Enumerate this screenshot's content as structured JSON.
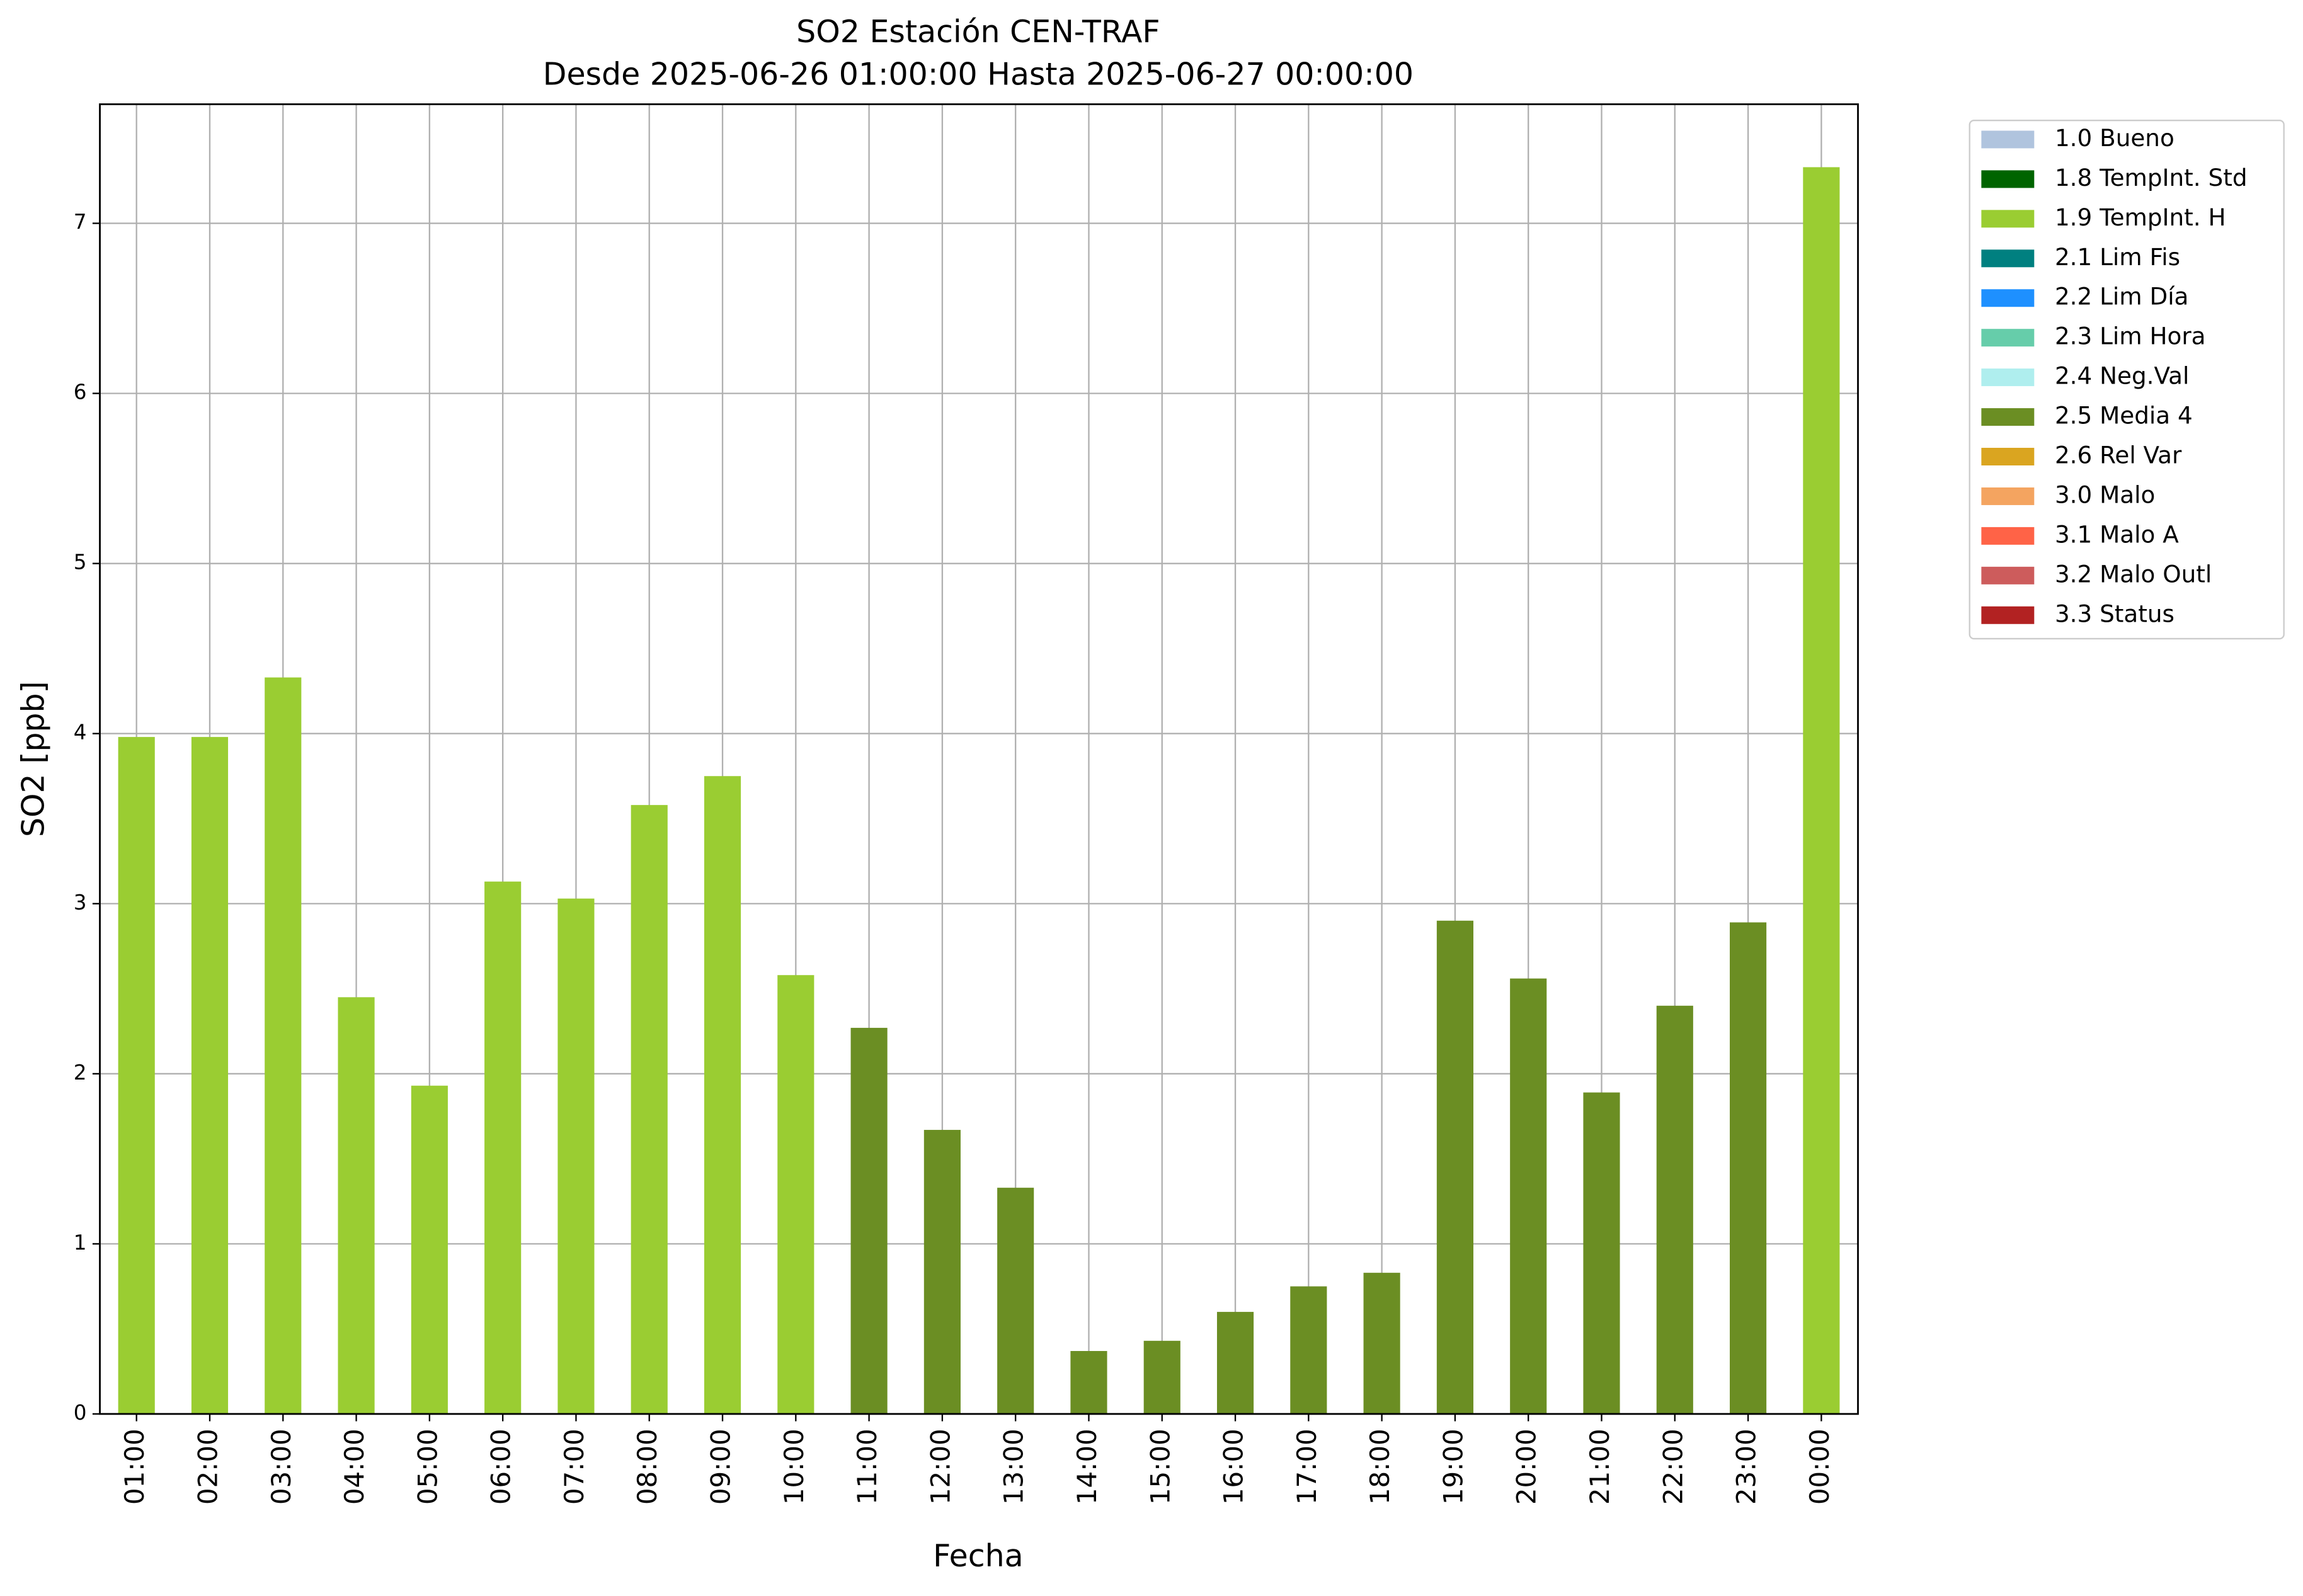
{
  "chart_data": {
    "type": "bar",
    "stacked": true,
    "title": "SO2 Estación CEN-TRAF",
    "subtitle": "Desde 2025-06-26 01:00:00 Hasta 2025-06-27 00:00:00",
    "xlabel": "Fecha",
    "ylabel": "SO2 [ppb]",
    "categories": [
      "01:00",
      "02:00",
      "03:00",
      "04:00",
      "05:00",
      "06:00",
      "07:00",
      "08:00",
      "09:00",
      "10:00",
      "11:00",
      "12:00",
      "13:00",
      "14:00",
      "15:00",
      "16:00",
      "17:00",
      "18:00",
      "19:00",
      "20:00",
      "21:00",
      "22:00",
      "23:00",
      "00:00"
    ],
    "ylim": [
      0,
      7.7
    ],
    "yticks": [
      0,
      1,
      2,
      3,
      4,
      5,
      6,
      7
    ],
    "grid": true,
    "legend": "outside-right",
    "series": [
      {
        "name": "1.0 Bueno",
        "color": "#b0c4de",
        "values": [
          null,
          null,
          null,
          null,
          null,
          null,
          null,
          null,
          null,
          null,
          null,
          null,
          null,
          null,
          null,
          null,
          null,
          null,
          null,
          null,
          null,
          null,
          null,
          null
        ]
      },
      {
        "name": "1.8 TempInt. Std",
        "color": "#006400",
        "values": [
          null,
          null,
          null,
          null,
          null,
          null,
          null,
          null,
          null,
          null,
          null,
          null,
          null,
          null,
          null,
          null,
          null,
          null,
          null,
          null,
          null,
          null,
          null,
          null
        ]
      },
      {
        "name": "1.9 TempInt. H",
        "color": "#9acd32",
        "values": [
          3.98,
          3.98,
          4.33,
          2.45,
          1.93,
          3.13,
          3.03,
          3.58,
          3.75,
          2.58,
          null,
          null,
          null,
          null,
          null,
          null,
          null,
          null,
          null,
          null,
          null,
          null,
          null,
          7.33
        ]
      },
      {
        "name": "2.1 Lim Fis",
        "color": "#008080",
        "values": [
          null,
          null,
          null,
          null,
          null,
          null,
          null,
          null,
          null,
          null,
          null,
          null,
          null,
          null,
          null,
          null,
          null,
          null,
          null,
          null,
          null,
          null,
          null,
          null
        ]
      },
      {
        "name": "2.2 Lim Día",
        "color": "#1e90ff",
        "values": [
          null,
          null,
          null,
          null,
          null,
          null,
          null,
          null,
          null,
          null,
          null,
          null,
          null,
          null,
          null,
          null,
          null,
          null,
          null,
          null,
          null,
          null,
          null,
          null
        ]
      },
      {
        "name": "2.3 Lim Hora",
        "color": "#66cdaa",
        "values": [
          null,
          null,
          null,
          null,
          null,
          null,
          null,
          null,
          null,
          null,
          null,
          null,
          null,
          null,
          null,
          null,
          null,
          null,
          null,
          null,
          null,
          null,
          null,
          null
        ]
      },
      {
        "name": "2.4 Neg.Val",
        "color": "#afeeee",
        "values": [
          null,
          null,
          null,
          null,
          null,
          null,
          null,
          null,
          null,
          null,
          null,
          null,
          null,
          null,
          null,
          null,
          null,
          null,
          null,
          null,
          null,
          null,
          null,
          null
        ]
      },
      {
        "name": "2.5 Media 4",
        "color": "#6b8e23",
        "values": [
          null,
          null,
          null,
          null,
          null,
          null,
          null,
          null,
          null,
          null,
          2.27,
          1.67,
          1.33,
          0.37,
          0.43,
          0.6,
          0.75,
          0.83,
          2.9,
          2.56,
          1.89,
          2.4,
          2.89,
          null
        ]
      },
      {
        "name": "2.6 Rel Var",
        "color": "#daa520",
        "values": [
          null,
          null,
          null,
          null,
          null,
          null,
          null,
          null,
          null,
          null,
          null,
          null,
          null,
          null,
          null,
          null,
          null,
          null,
          null,
          null,
          null,
          null,
          null,
          null
        ]
      },
      {
        "name": "3.0 Malo",
        "color": "#f4a460",
        "values": [
          null,
          null,
          null,
          null,
          null,
          null,
          null,
          null,
          null,
          null,
          null,
          null,
          null,
          null,
          null,
          null,
          null,
          null,
          null,
          null,
          null,
          null,
          null,
          null
        ]
      },
      {
        "name": "3.1 Malo A",
        "color": "#ff6347",
        "values": [
          null,
          null,
          null,
          null,
          null,
          null,
          null,
          null,
          null,
          null,
          null,
          null,
          null,
          null,
          null,
          null,
          null,
          null,
          null,
          null,
          null,
          null,
          null,
          null
        ]
      },
      {
        "name": "3.2 Malo Outl",
        "color": "#cd5c5c",
        "values": [
          null,
          null,
          null,
          null,
          null,
          null,
          null,
          null,
          null,
          null,
          null,
          null,
          null,
          null,
          null,
          null,
          null,
          null,
          null,
          null,
          null,
          null,
          null,
          null
        ]
      },
      {
        "name": "3.3 Status",
        "color": "#b22222",
        "values": [
          null,
          null,
          null,
          null,
          null,
          null,
          null,
          null,
          null,
          null,
          null,
          null,
          null,
          null,
          null,
          null,
          null,
          null,
          null,
          null,
          null,
          null,
          null,
          null
        ]
      }
    ]
  }
}
